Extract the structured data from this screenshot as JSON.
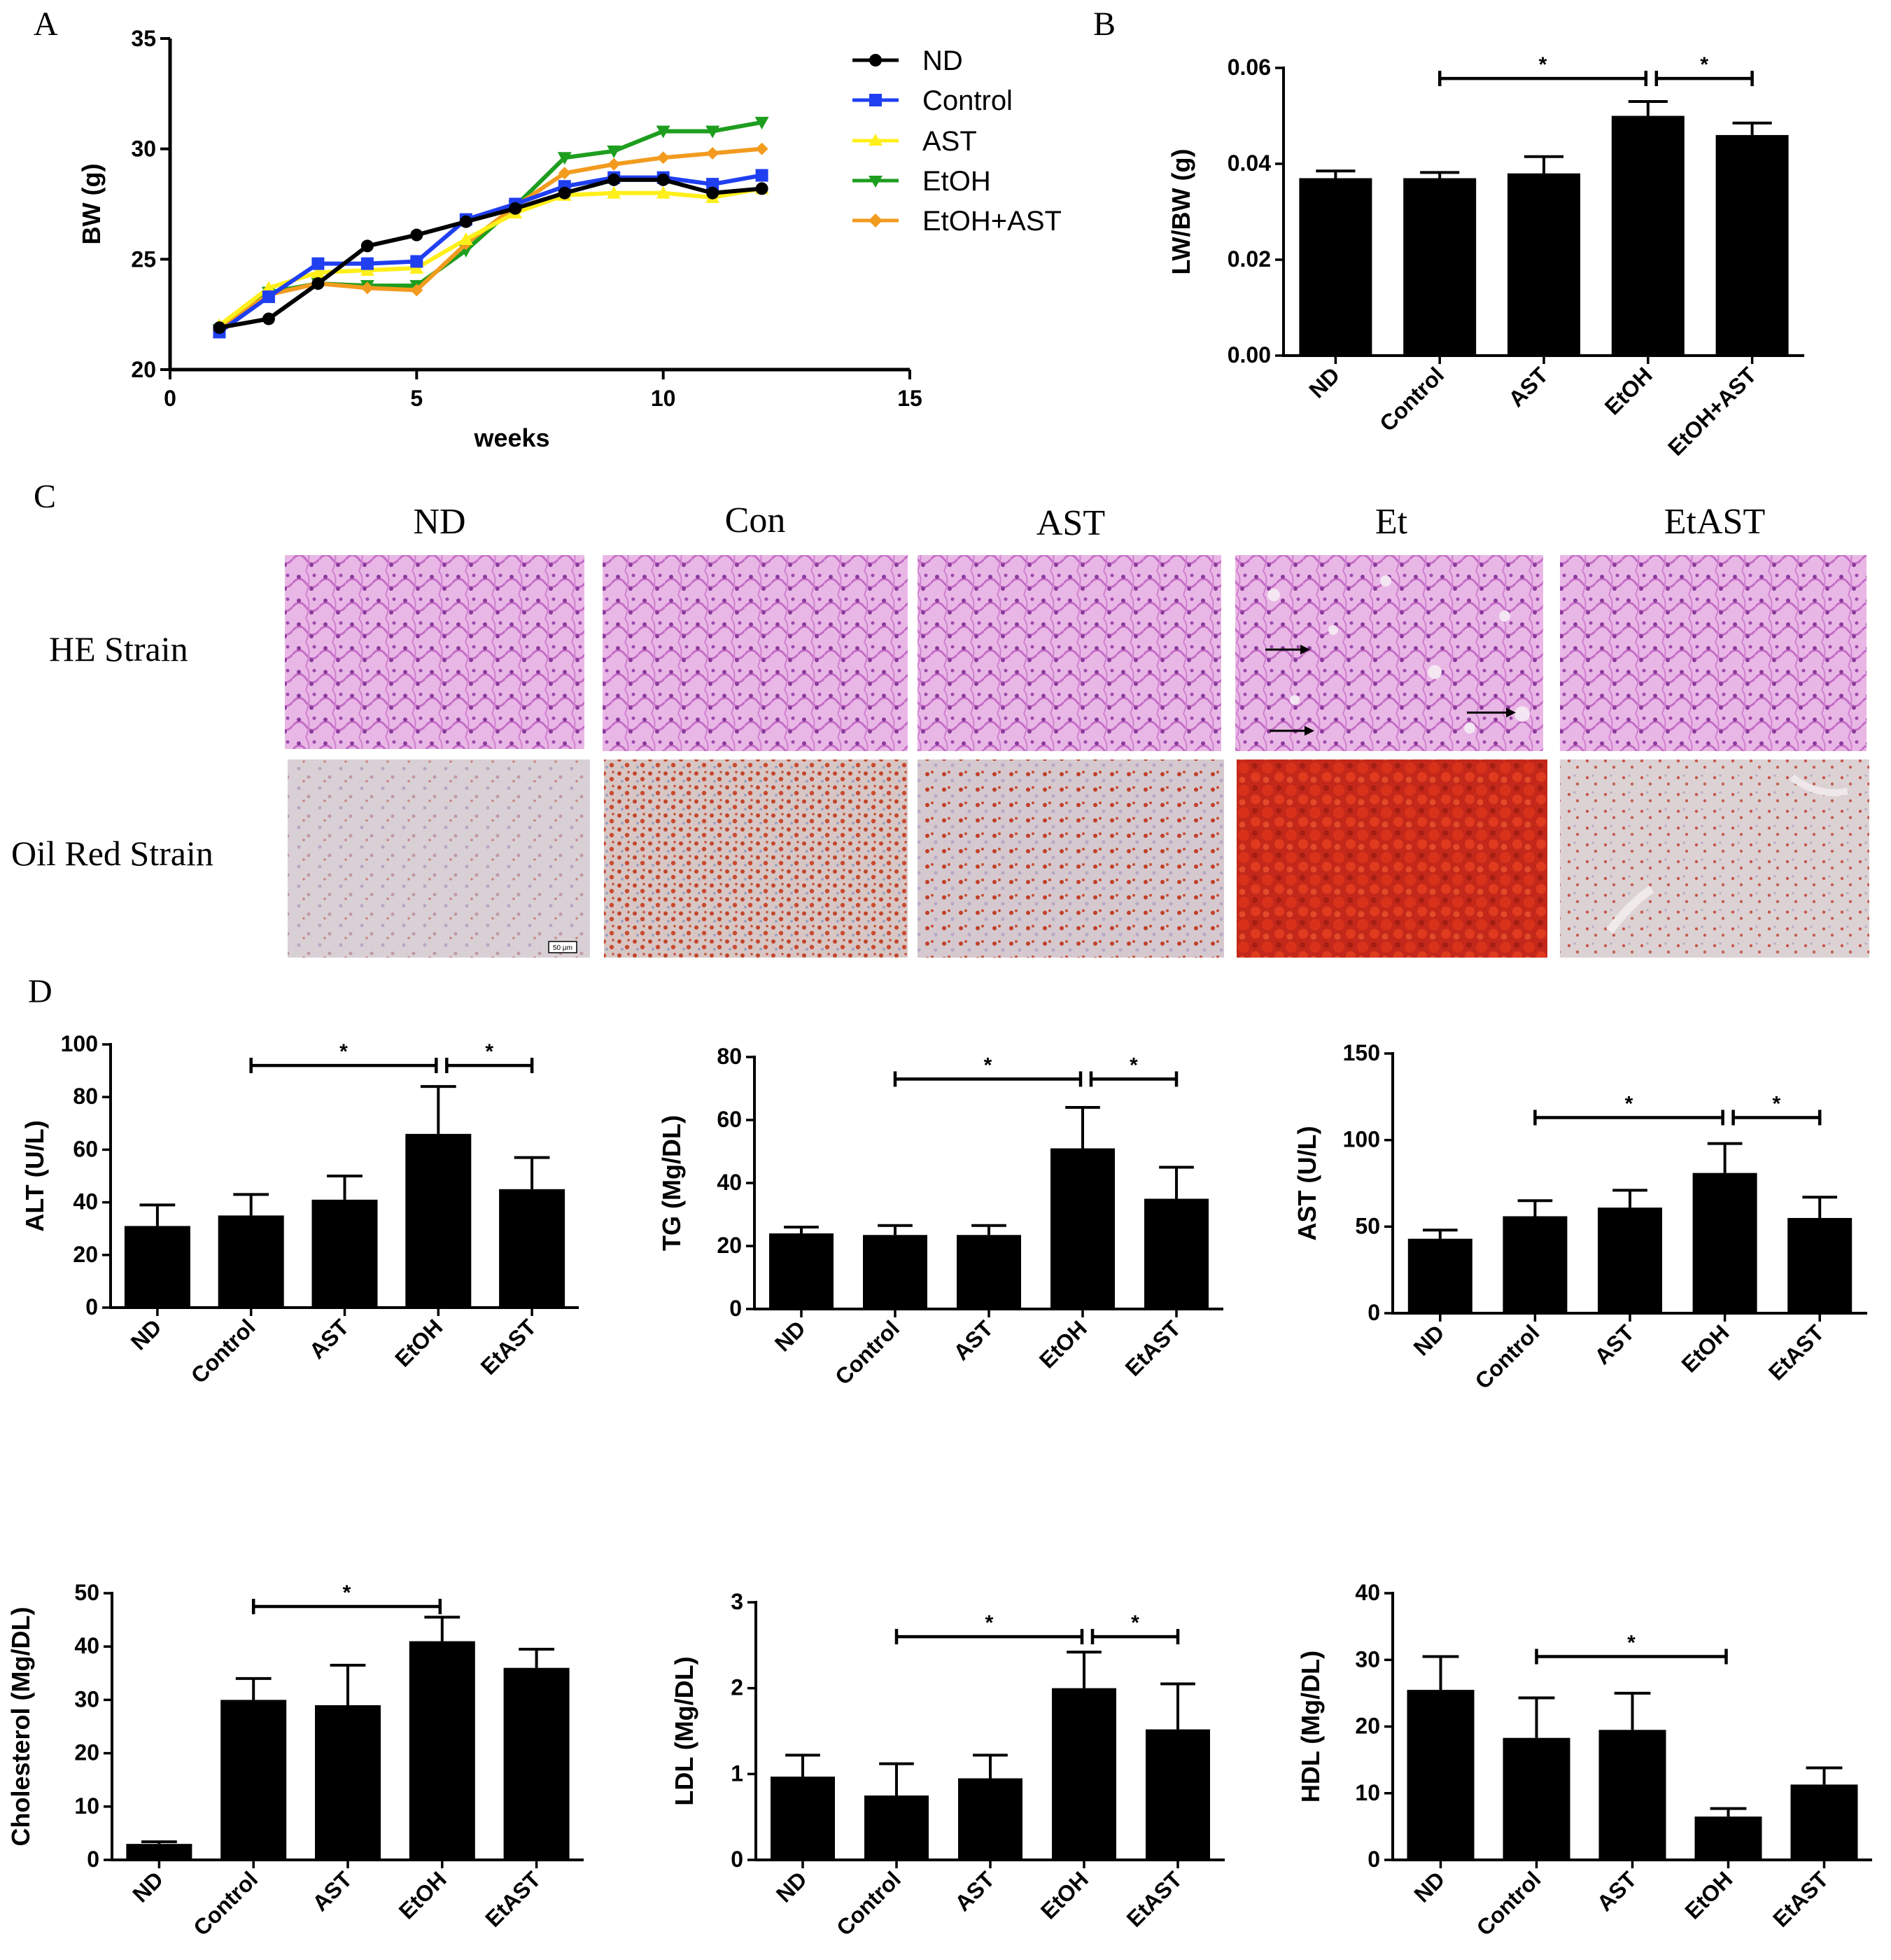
{
  "panels": {
    "A": "A",
    "B": "B",
    "C": "C",
    "D": "D"
  },
  "colors": {
    "ND": "#000000",
    "Control": "#1f3ff0",
    "AST": "#ffef1a",
    "EtOH": "#1e9e1e",
    "EtOH+AST": "#f29b1f",
    "bar": "#000000",
    "he_stain": "#c86cc8",
    "he_bg": "#e8b8e8",
    "oil_bg": "#dcd0d4",
    "oil_red": "#c0321e"
  },
  "histology": {
    "columns": [
      "ND",
      "Con",
      "AST",
      "Et",
      "EtAST"
    ],
    "rows": [
      "HE Strain",
      "Oil Red Strain"
    ],
    "scale_label": "50 μm",
    "arrow_icon": "right-arrow-icon"
  },
  "chart_data": [
    {
      "id": "A",
      "type": "line",
      "title": "",
      "xlabel": "weeks",
      "ylabel": "BW (g)",
      "xlim": [
        0,
        15
      ],
      "ylim": [
        20,
        35
      ],
      "xticks": [
        0,
        5,
        10,
        15
      ],
      "yticks": [
        20,
        25,
        30,
        35
      ],
      "legend_position": "top-right",
      "x": [
        1,
        2,
        3,
        4,
        5,
        6,
        7,
        8,
        9,
        10,
        11,
        12
      ],
      "series": [
        {
          "name": "ND",
          "marker": "circle",
          "values": [
            21.9,
            22.3,
            23.9,
            25.6,
            26.1,
            26.7,
            27.3,
            28.0,
            28.6,
            28.6,
            28.0,
            28.2
          ]
        },
        {
          "name": "Control",
          "marker": "square",
          "values": [
            21.7,
            23.3,
            24.8,
            24.8,
            24.9,
            26.8,
            27.5,
            28.3,
            28.7,
            28.7,
            28.4,
            28.8
          ]
        },
        {
          "name": "AST",
          "marker": "triangle-up",
          "values": [
            22.0,
            23.7,
            24.4,
            24.5,
            24.6,
            25.9,
            27.1,
            27.9,
            28.0,
            28.0,
            27.8,
            28.2
          ]
        },
        {
          "name": "EtOH",
          "marker": "triangle-down",
          "values": [
            21.8,
            23.5,
            23.9,
            23.8,
            23.8,
            25.4,
            27.4,
            29.6,
            29.9,
            30.8,
            30.8,
            31.2
          ]
        },
        {
          "name": "EtOH+AST",
          "marker": "diamond",
          "values": [
            21.9,
            23.4,
            23.9,
            23.7,
            23.6,
            25.7,
            27.4,
            28.9,
            29.3,
            29.6,
            29.8,
            30.0
          ]
        }
      ]
    },
    {
      "id": "B",
      "type": "bar",
      "xlabel": "",
      "ylabel": "LW/BW (g)",
      "categories": [
        "ND",
        "Control",
        "AST",
        "EtOH",
        "EtOH+AST"
      ],
      "values": [
        0.037,
        0.037,
        0.038,
        0.05,
        0.046
      ],
      "errors": [
        0.0015,
        0.0012,
        0.0035,
        0.003,
        0.0025
      ],
      "ylim": [
        0,
        0.06
      ],
      "yticks": [
        "0.00",
        "0.02",
        "0.04",
        "0.06"
      ],
      "significance": [
        {
          "from": 1,
          "to": 3,
          "label": "*",
          "level": 0.0578
        },
        {
          "from": 3,
          "to": 4,
          "label": "*",
          "level": 0.0578
        }
      ]
    },
    {
      "id": "ALT",
      "type": "bar",
      "ylabel": "ALT (U/L)",
      "categories": [
        "ND",
        "Control",
        "AST",
        "EtOH",
        "EtAST"
      ],
      "values": [
        31,
        35,
        41,
        66,
        45
      ],
      "errors": [
        8,
        8,
        9,
        18,
        12
      ],
      "ylim": [
        0,
        100
      ],
      "yticks": [
        "0",
        "20",
        "40",
        "60",
        "80",
        "100"
      ],
      "significance": [
        {
          "from": 1,
          "to": 3,
          "label": "*",
          "level": 92
        },
        {
          "from": 3,
          "to": 4,
          "label": "*",
          "level": 92
        }
      ]
    },
    {
      "id": "TG",
      "type": "bar",
      "ylabel": "TG (Mg/DL)",
      "categories": [
        "ND",
        "Control",
        "AST",
        "EtOH",
        "EtAST"
      ],
      "values": [
        24,
        23.5,
        23.5,
        51,
        35
      ],
      "errors": [
        2,
        3,
        3,
        13,
        10
      ],
      "ylim": [
        0,
        80
      ],
      "yticks": [
        "0",
        "20",
        "40",
        "60",
        "80"
      ],
      "significance": [
        {
          "from": 1,
          "to": 3,
          "label": "*",
          "level": 73
        },
        {
          "from": 3,
          "to": 4,
          "label": "*",
          "level": 73
        }
      ]
    },
    {
      "id": "AST",
      "type": "bar",
      "ylabel": "AST (U/L)",
      "categories": [
        "ND",
        "Control",
        "AST",
        "EtOH",
        "EtAST"
      ],
      "values": [
        43,
        56,
        61,
        81,
        55
      ],
      "errors": [
        5,
        9,
        10,
        17,
        12
      ],
      "ylim": [
        0,
        150
      ],
      "yticks": [
        "0",
        "50",
        "100",
        "150"
      ],
      "significance": [
        {
          "from": 1,
          "to": 3,
          "label": "*",
          "level": 113
        },
        {
          "from": 3,
          "to": 4,
          "label": "*",
          "level": 113
        }
      ]
    },
    {
      "id": "Cholesterol",
      "type": "bar",
      "ylabel": "Cholesterol (Mg/DL)",
      "categories": [
        "ND",
        "Control",
        "AST",
        "EtOH",
        "EtAST"
      ],
      "values": [
        3,
        30,
        29,
        41,
        36
      ],
      "errors": [
        0.4,
        4,
        7.5,
        4.5,
        3.5
      ],
      "ylim": [
        0,
        50
      ],
      "yticks": [
        "0",
        "10",
        "20",
        "30",
        "40",
        "50"
      ],
      "significance": [
        {
          "from": 1,
          "to": 3,
          "label": "*",
          "level": 47.5
        }
      ]
    },
    {
      "id": "LDL",
      "type": "bar",
      "ylabel": "LDL (Mg/DL)",
      "categories": [
        "ND",
        "Control",
        "AST",
        "EtOH",
        "EtAST"
      ],
      "values": [
        0.97,
        0.75,
        0.95,
        2.0,
        1.52
      ],
      "errors": [
        0.25,
        0.37,
        0.27,
        0.42,
        0.53
      ],
      "ylim": [
        0,
        3
      ],
      "yticks": [
        "0",
        "1",
        "2",
        "3"
      ],
      "significance": [
        {
          "from": 1,
          "to": 3,
          "label": "*",
          "level": 2.6
        },
        {
          "from": 3,
          "to": 4,
          "label": "*",
          "level": 2.6
        }
      ]
    },
    {
      "id": "HDL",
      "type": "bar",
      "ylabel": "HDL (Mg/DL)",
      "categories": [
        "ND",
        "Control",
        "AST",
        "EtOH",
        "EtAST"
      ],
      "values": [
        25.5,
        18.3,
        19.5,
        6.5,
        11.3
      ],
      "errors": [
        5,
        6,
        5.5,
        1.2,
        2.5
      ],
      "ylim": [
        0,
        40
      ],
      "yticks": [
        "0",
        "10",
        "20",
        "30",
        "40"
      ],
      "significance": [
        {
          "from": 1,
          "to": 3,
          "label": "*",
          "level": 30.5
        }
      ]
    }
  ]
}
